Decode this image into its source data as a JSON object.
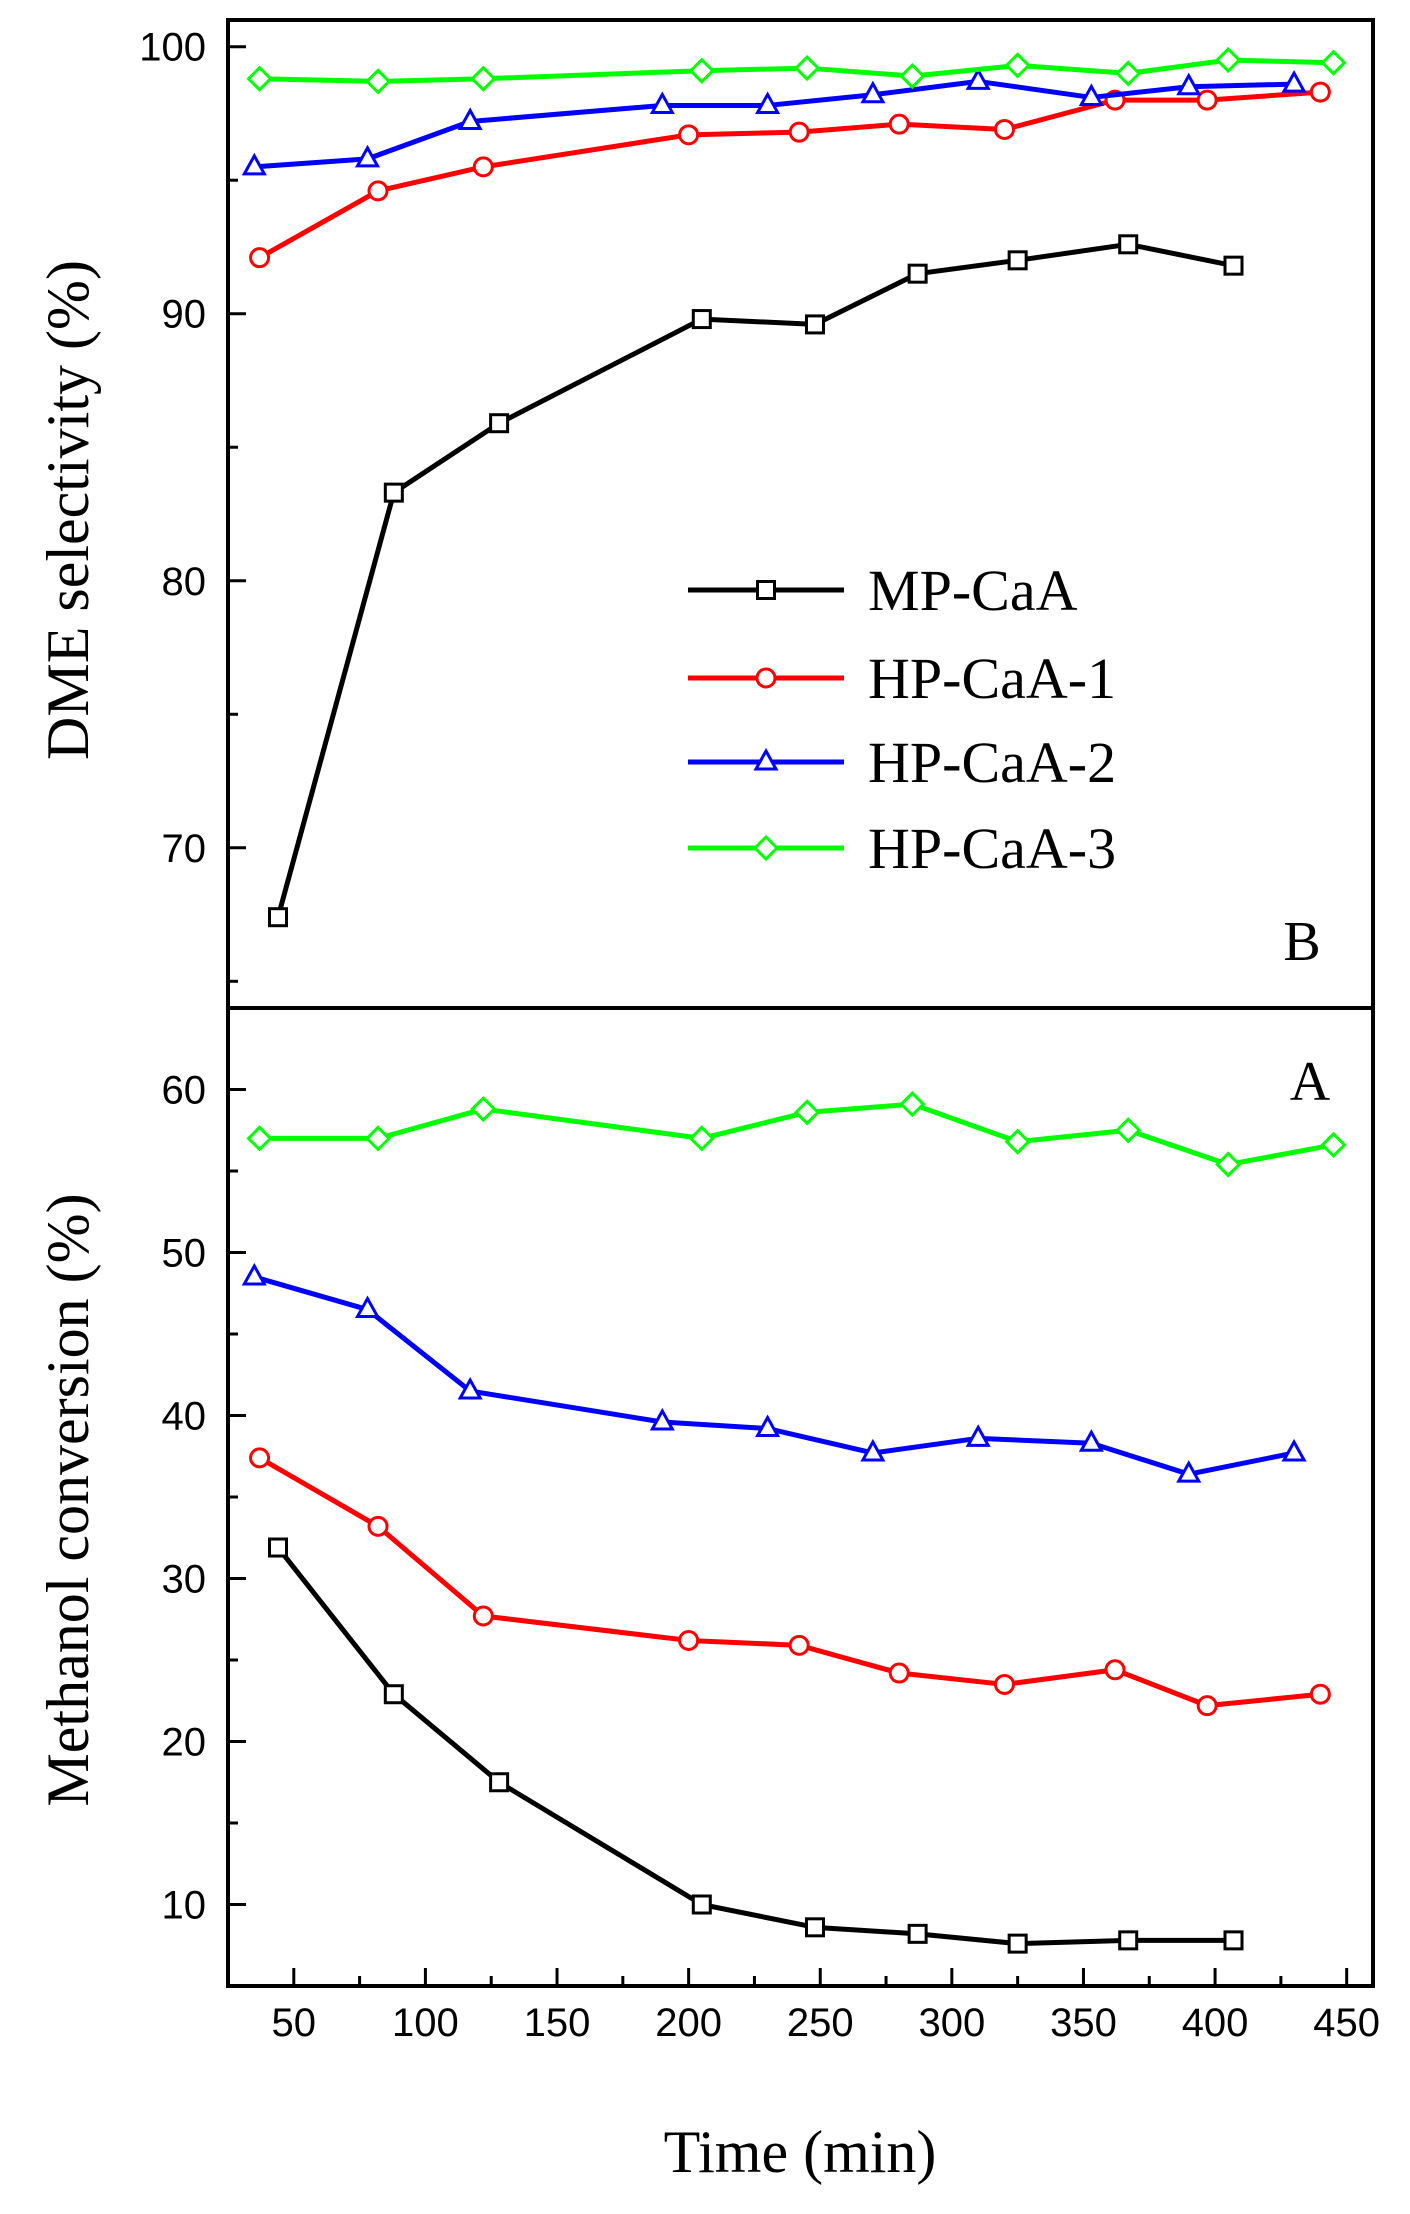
{
  "chart_data": [
    {
      "panel": "B",
      "type": "line",
      "ylabel": "DME selectivity (%)",
      "xlabel": "Time (min)",
      "xlim": [
        25,
        460
      ],
      "ylim": [
        64,
        101
      ],
      "yticks": [
        70,
        80,
        90,
        100
      ],
      "legend_position": "center-right",
      "series": [
        {
          "name": "MP-CaA",
          "color": "#000000",
          "marker": "square",
          "x": [
            44,
            88,
            128,
            205,
            248,
            287,
            325,
            367,
            407
          ],
          "y": [
            67.4,
            83.3,
            85.9,
            89.8,
            89.6,
            91.5,
            92.0,
            92.6,
            91.8
          ]
        },
        {
          "name": "HP-CaA-1",
          "color": "#ff0000",
          "marker": "circle",
          "x": [
            37,
            82,
            122,
            200,
            242,
            280,
            320,
            362,
            397,
            440
          ],
          "y": [
            92.1,
            94.6,
            95.5,
            96.7,
            96.8,
            97.1,
            96.9,
            98.0,
            98.0,
            98.3
          ]
        },
        {
          "name": "HP-CaA-2",
          "color": "#0000ff",
          "marker": "triangle",
          "x": [
            35,
            78,
            117,
            190,
            230,
            270,
            310,
            353,
            390,
            430
          ],
          "y": [
            95.5,
            95.8,
            97.2,
            97.8,
            97.8,
            98.2,
            98.7,
            98.1,
            98.5,
            98.6
          ]
        },
        {
          "name": "HP-CaA-3",
          "color": "#00ff00",
          "marker": "diamond",
          "x": [
            37,
            82,
            122,
            205,
            245,
            285,
            325,
            367,
            405,
            445
          ],
          "y": [
            98.8,
            98.7,
            98.8,
            99.1,
            99.2,
            98.9,
            99.3,
            99.0,
            99.5,
            99.4
          ]
        }
      ]
    },
    {
      "panel": "A",
      "type": "line",
      "ylabel": "Methanol conversion (%)",
      "xlabel": "Time (min)",
      "xlim": [
        25,
        460
      ],
      "ylim": [
        5,
        65
      ],
      "yticks": [
        10,
        20,
        30,
        40,
        50,
        60
      ],
      "xticks": [
        50,
        100,
        150,
        200,
        250,
        300,
        350,
        400,
        450
      ],
      "series": [
        {
          "name": "MP-CaA",
          "color": "#000000",
          "marker": "square",
          "x": [
            44,
            88,
            128,
            205,
            248,
            287,
            325,
            367,
            407
          ],
          "y": [
            31.9,
            22.9,
            17.5,
            10.0,
            8.6,
            8.2,
            7.6,
            7.8,
            7.8
          ]
        },
        {
          "name": "HP-CaA-1",
          "color": "#ff0000",
          "marker": "circle",
          "x": [
            37,
            82,
            122,
            200,
            242,
            280,
            320,
            362,
            397,
            440
          ],
          "y": [
            37.4,
            33.2,
            27.7,
            26.2,
            25.9,
            24.2,
            23.5,
            24.4,
            22.2,
            22.9
          ]
        },
        {
          "name": "HP-CaA-2",
          "color": "#0000ff",
          "marker": "triangle",
          "x": [
            35,
            78,
            117,
            190,
            230,
            270,
            310,
            353,
            390,
            430
          ],
          "y": [
            48.5,
            46.5,
            41.5,
            39.6,
            39.2,
            37.7,
            38.6,
            38.3,
            36.4,
            37.7
          ]
        },
        {
          "name": "HP-CaA-3",
          "color": "#00ff00",
          "marker": "diamond",
          "x": [
            37,
            82,
            122,
            205,
            245,
            285,
            325,
            367,
            405,
            445
          ],
          "y": [
            57.0,
            57.0,
            58.8,
            57.0,
            58.6,
            59.1,
            56.8,
            57.5,
            55.4,
            56.6
          ]
        }
      ]
    }
  ]
}
